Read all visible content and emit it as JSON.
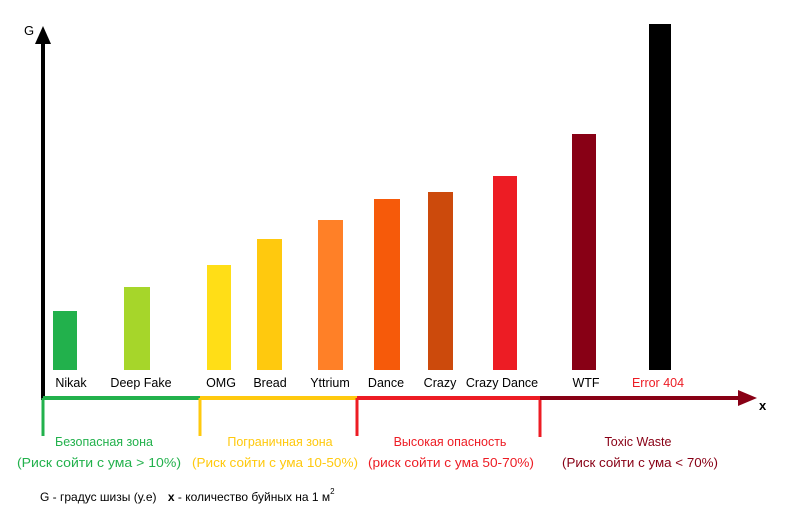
{
  "chart_data": {
    "type": "bar",
    "ylabel": "G",
    "xlabel": "x",
    "categories": [
      "Nikak",
      "Deep Fake",
      "OMG",
      "Bread",
      "Yttrium",
      "Dance",
      "Crazy",
      "Crazy Dance",
      "WTF",
      "Error 404"
    ],
    "values": [
      59,
      83,
      105,
      131,
      150,
      171,
      178,
      194,
      236,
      346
    ],
    "colors": [
      "#22b14c",
      "#a6d62a",
      "#ffde17",
      "#ffc90e",
      "#ff8027",
      "#f65a0a",
      "#cc4a0c",
      "#ed1c24",
      "#880015",
      "#000000"
    ],
    "label_colors": [
      "#000000",
      "#000000",
      "#000000",
      "#000000",
      "#000000",
      "#000000",
      "#000000",
      "#000000",
      "#000000",
      "#ed1c24"
    ],
    "grid": false,
    "zones": [
      {
        "title": "Безопасная зона",
        "risk": "(Риск сойти с ума  > 10%)",
        "color": "#22b14c",
        "text_color": "#22b14c"
      },
      {
        "title": "Пограничная зона",
        "risk": "(Риск сойти с ума 10-50%)",
        "color": "#ffc90e",
        "text_color": "#ffc90e"
      },
      {
        "title": "Высокая опасность",
        "risk": "(риск сойти с ума 50-70%)",
        "color": "#ed1c24",
        "text_color": "#ed1c24"
      },
      {
        "title": "Toxic Waste",
        "risk": "(Риск сойти с ума < 70%)",
        "color": "#880015",
        "text_color": "#880015"
      }
    ],
    "footnote": {
      "g_def": "G - градус шизы (у.е)",
      "x_def_bold": "x",
      "x_def": " - количество буйных на 1 м",
      "x_def_sup": "2"
    }
  }
}
